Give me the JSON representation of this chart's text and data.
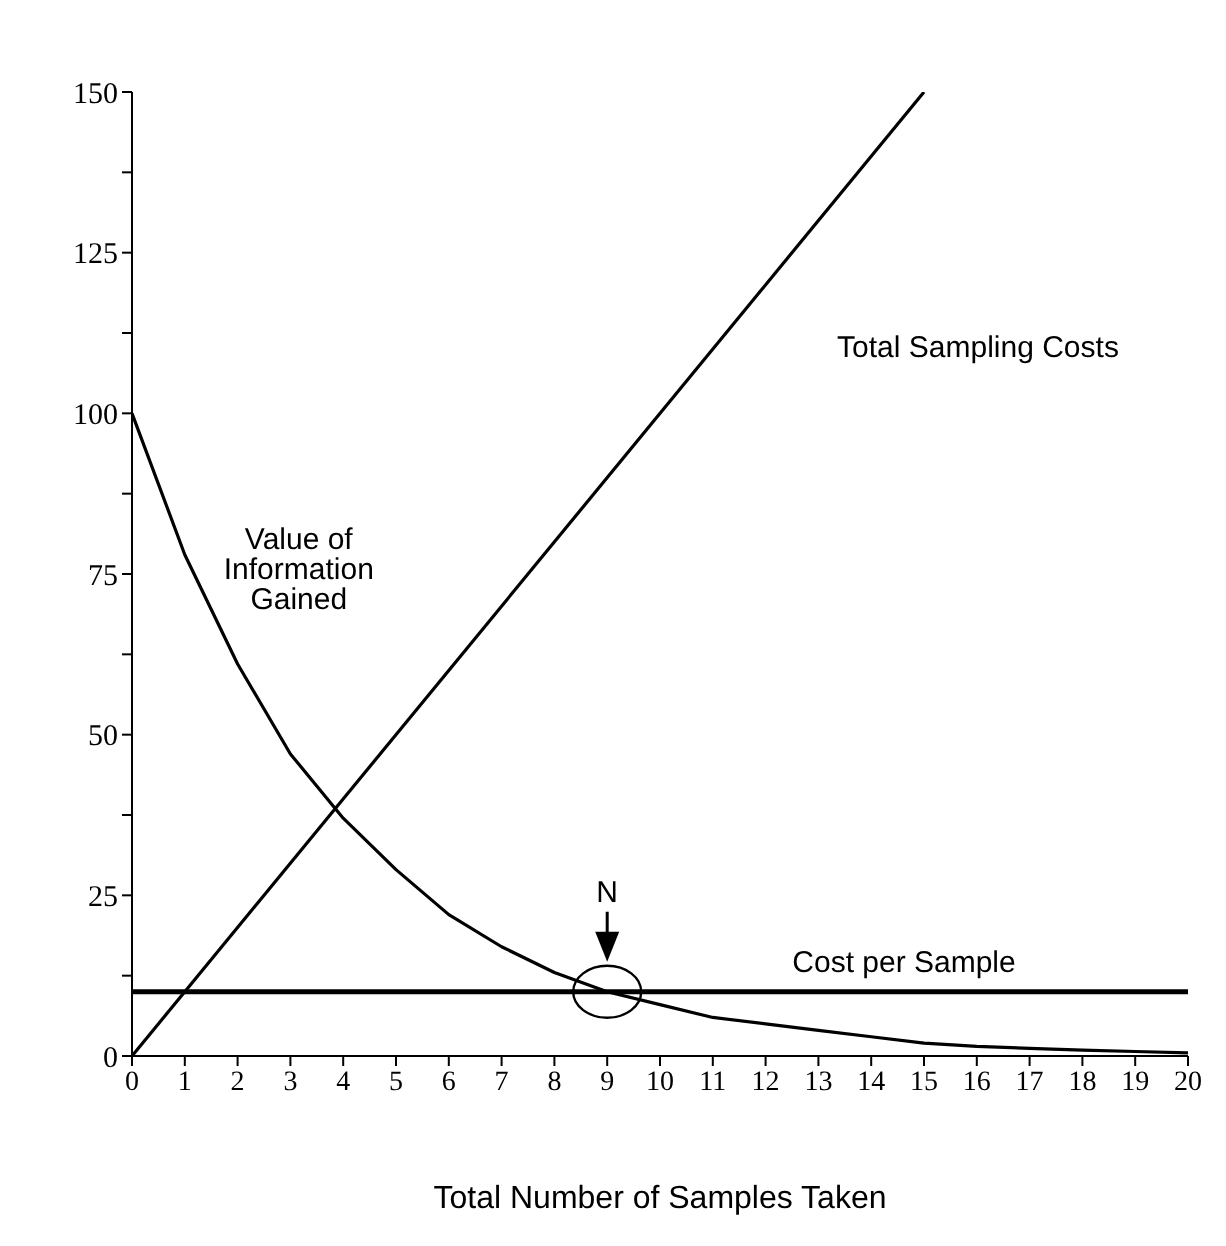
{
  "chart_data": {
    "type": "line",
    "xlabel": "Total Number of Samples Taken",
    "xlim": [
      0,
      20
    ],
    "xticks": [
      0,
      1,
      2,
      3,
      4,
      5,
      6,
      7,
      8,
      9,
      10,
      11,
      12,
      13,
      14,
      15,
      16,
      17,
      18,
      19,
      20
    ],
    "ylim": [
      0,
      150
    ],
    "yticks": [
      0,
      {
        "value": 12.5,
        "label": null
      },
      25,
      {
        "value": 37.5,
        "label": null
      },
      50,
      {
        "value": 62.5,
        "label": null
      },
      75,
      {
        "value": 87.5,
        "label": null
      },
      100,
      {
        "value": 112.5,
        "label": null
      },
      125,
      {
        "value": 137.5,
        "label": null
      },
      150
    ],
    "marker": "none",
    "line_style": "solid",
    "series": [
      {
        "name": "Value of Information Gained",
        "color": "#000000",
        "x": [
          0,
          1,
          2,
          3,
          4,
          5,
          6,
          7,
          8,
          9,
          10,
          11,
          12,
          13,
          14,
          15,
          16,
          17,
          18,
          19,
          20
        ],
        "values": [
          100,
          78,
          61,
          47,
          37,
          29,
          22,
          17,
          13,
          10,
          8,
          6,
          5,
          4,
          3,
          2,
          1.5,
          1.2,
          0.9,
          0.7,
          0.5
        ]
      },
      {
        "name": "Total Sampling Costs",
        "color": "#000000",
        "x": [
          0,
          15
        ],
        "values": [
          0,
          150
        ]
      },
      {
        "name": "Cost per Sample",
        "color": "#000000",
        "x": [
          0,
          20
        ],
        "values": [
          10,
          10
        ]
      }
    ],
    "annotations": [
      {
        "text": "N",
        "x": 9,
        "y": 10
      }
    ]
  }
}
